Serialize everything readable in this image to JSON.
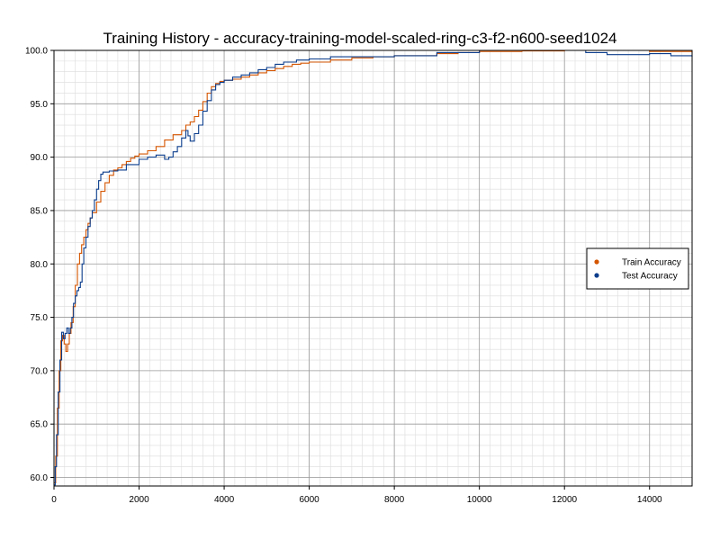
{
  "chart_data": {
    "type": "line",
    "title": "Training History - accuracy-training-model-scaled-ring-c3-f2-n600-seed1024",
    "xlabel": "",
    "ylabel": "",
    "xlim": [
      0,
      15000
    ],
    "ylim": [
      59.2,
      100.0
    ],
    "x_ticks": [
      0,
      2000,
      4000,
      6000,
      8000,
      10000,
      12000,
      14000
    ],
    "x_tick_labels": [
      "0",
      "2000",
      "4000",
      "6000",
      "8000",
      "10000",
      "12000",
      "14000"
    ],
    "y_ticks": [
      60,
      65,
      70,
      75,
      80,
      85,
      90,
      95,
      100
    ],
    "y_tick_labels": [
      "60.0",
      "65.0",
      "70.0",
      "75.0",
      "80.0",
      "85.0",
      "90.0",
      "95.0",
      "100.0"
    ],
    "grid": true,
    "legend_position": "right",
    "series": [
      {
        "name": "Train Accuracy",
        "color": "#d45500",
        "points": [
          [
            0,
            59.5
          ],
          [
            40,
            62.0
          ],
          [
            80,
            66.5
          ],
          [
            120,
            70.0
          ],
          [
            160,
            72.8
          ],
          [
            200,
            73.3
          ],
          [
            240,
            72.5
          ],
          [
            280,
            71.8
          ],
          [
            320,
            72.5
          ],
          [
            360,
            73.5
          ],
          [
            400,
            74.5
          ],
          [
            450,
            76.0
          ],
          [
            500,
            78.0
          ],
          [
            550,
            80.0
          ],
          [
            600,
            81.0
          ],
          [
            650,
            81.8
          ],
          [
            700,
            82.5
          ],
          [
            750,
            83.2
          ],
          [
            800,
            83.8
          ],
          [
            850,
            84.3
          ],
          [
            900,
            84.8
          ],
          [
            1000,
            85.8
          ],
          [
            1100,
            86.8
          ],
          [
            1200,
            87.6
          ],
          [
            1300,
            88.3
          ],
          [
            1400,
            88.8
          ],
          [
            1500,
            89.0
          ],
          [
            1600,
            89.3
          ],
          [
            1700,
            89.6
          ],
          [
            1800,
            89.9
          ],
          [
            1900,
            90.1
          ],
          [
            2000,
            90.3
          ],
          [
            2200,
            90.6
          ],
          [
            2400,
            91.0
          ],
          [
            2600,
            91.6
          ],
          [
            2800,
            92.1
          ],
          [
            3000,
            92.5
          ],
          [
            3100,
            93.0
          ],
          [
            3200,
            93.3
          ],
          [
            3300,
            93.8
          ],
          [
            3400,
            94.4
          ],
          [
            3500,
            95.2
          ],
          [
            3600,
            96.0
          ],
          [
            3700,
            96.6
          ],
          [
            3800,
            96.9
          ],
          [
            3900,
            97.1
          ],
          [
            4000,
            97.2
          ],
          [
            4200,
            97.3
          ],
          [
            4400,
            97.5
          ],
          [
            4600,
            97.7
          ],
          [
            4800,
            97.9
          ],
          [
            5000,
            98.1
          ],
          [
            5200,
            98.3
          ],
          [
            5400,
            98.5
          ],
          [
            5600,
            98.7
          ],
          [
            5800,
            98.8
          ],
          [
            6000,
            98.9
          ],
          [
            6500,
            99.1
          ],
          [
            7000,
            99.3
          ],
          [
            7500,
            99.4
          ],
          [
            8000,
            99.5
          ],
          [
            8500,
            99.5
          ],
          [
            9000,
            99.7
          ],
          [
            9500,
            99.8
          ],
          [
            10000,
            99.9
          ],
          [
            11000,
            99.95
          ],
          [
            12000,
            100.0
          ],
          [
            13000,
            100.0
          ],
          [
            14000,
            99.9
          ],
          [
            15000,
            99.8
          ]
        ]
      },
      {
        "name": "Test Accuracy",
        "color": "#0b3d8c",
        "points": [
          [
            0,
            59.3
          ],
          [
            30,
            61.0
          ],
          [
            60,
            64.0
          ],
          [
            100,
            68.0
          ],
          [
            140,
            71.0
          ],
          [
            180,
            73.6
          ],
          [
            220,
            73.0
          ],
          [
            260,
            73.5
          ],
          [
            300,
            74.0
          ],
          [
            340,
            73.5
          ],
          [
            380,
            74.0
          ],
          [
            420,
            75.0
          ],
          [
            460,
            76.3
          ],
          [
            500,
            77.0
          ],
          [
            540,
            77.5
          ],
          [
            580,
            77.8
          ],
          [
            620,
            78.3
          ],
          [
            660,
            80.0
          ],
          [
            700,
            81.5
          ],
          [
            750,
            82.5
          ],
          [
            800,
            83.5
          ],
          [
            850,
            84.3
          ],
          [
            900,
            85.0
          ],
          [
            950,
            86.0
          ],
          [
            1000,
            87.0
          ],
          [
            1050,
            87.8
          ],
          [
            1100,
            88.4
          ],
          [
            1150,
            88.6
          ],
          [
            1300,
            88.7
          ],
          [
            1500,
            88.8
          ],
          [
            1700,
            89.3
          ],
          [
            2000,
            89.8
          ],
          [
            2200,
            90.0
          ],
          [
            2400,
            90.2
          ],
          [
            2500,
            90.2
          ],
          [
            2600,
            89.8
          ],
          [
            2700,
            90.0
          ],
          [
            2800,
            90.5
          ],
          [
            2900,
            91.0
          ],
          [
            3000,
            91.8
          ],
          [
            3100,
            92.5
          ],
          [
            3150,
            92.0
          ],
          [
            3200,
            91.5
          ],
          [
            3300,
            92.2
          ],
          [
            3400,
            93.0
          ],
          [
            3500,
            94.3
          ],
          [
            3600,
            95.3
          ],
          [
            3700,
            96.3
          ],
          [
            3800,
            96.8
          ],
          [
            3900,
            97.0
          ],
          [
            4000,
            97.2
          ],
          [
            4200,
            97.5
          ],
          [
            4400,
            97.7
          ],
          [
            4600,
            97.9
          ],
          [
            4800,
            98.2
          ],
          [
            5000,
            98.4
          ],
          [
            5200,
            98.7
          ],
          [
            5400,
            98.9
          ],
          [
            5700,
            99.1
          ],
          [
            6000,
            99.2
          ],
          [
            6500,
            99.4
          ],
          [
            7000,
            99.4
          ],
          [
            8000,
            99.5
          ],
          [
            9000,
            99.8
          ],
          [
            10000,
            100.0
          ],
          [
            11000,
            100.0
          ],
          [
            12000,
            100.0
          ],
          [
            12500,
            99.8
          ],
          [
            13000,
            99.6
          ],
          [
            13500,
            99.6
          ],
          [
            14000,
            99.7
          ],
          [
            14500,
            99.5
          ],
          [
            15000,
            99.4
          ]
        ]
      }
    ]
  }
}
